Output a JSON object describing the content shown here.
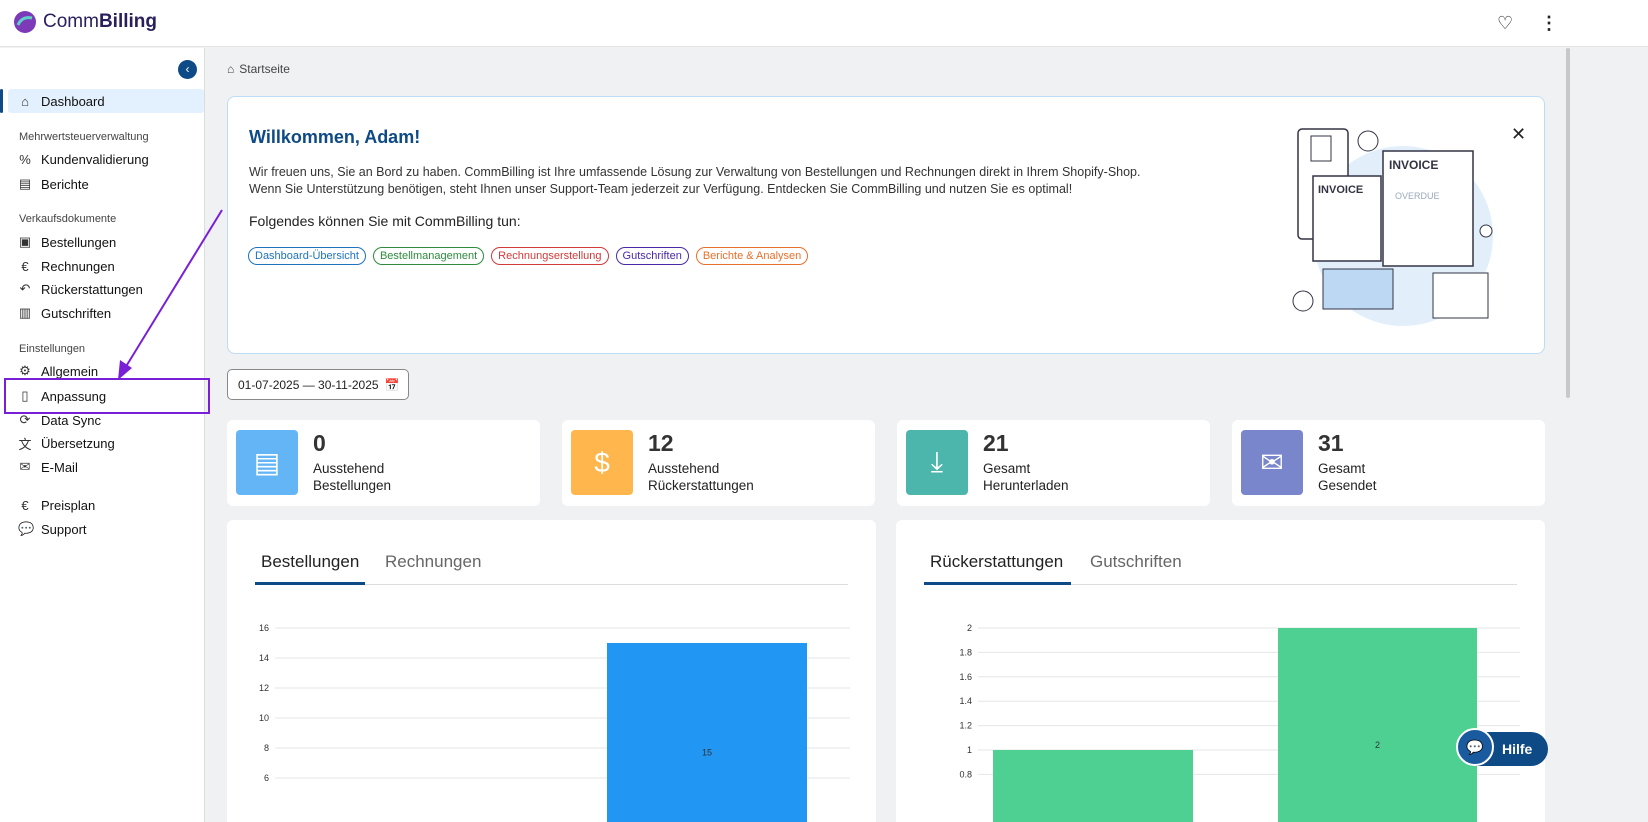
{
  "app": {
    "name_light": "Comm",
    "name_bold": "Billing"
  },
  "header": {
    "favorite_icon": "heart-icon",
    "menu_icon": "more-vertical-icon"
  },
  "sidebar": {
    "dashboard": "Dashboard",
    "sections": [
      "Mehrwertsteuerverwaltung",
      "Verkaufsdokumente",
      "Einstellungen"
    ],
    "items": [
      "Kundenvalidierung",
      "Berichte",
      "Bestellungen",
      "Rechnungen",
      "Rückerstattungen",
      "Gutschriften",
      "Allgemein",
      "Anpassung",
      "Data Sync",
      "Übersetzung",
      "E-Mail",
      "Preisplan",
      "Support"
    ]
  },
  "breadcrumb": "Startseite",
  "welcome": {
    "title": "Willkommen, Adam!",
    "line1": "Wir freuen uns, Sie an Bord zu haben. CommBilling ist Ihre umfassende Lösung zur Verwaltung von Bestellungen und Rechnungen direkt in Ihrem Shopify-Shop.",
    "line2": "Wenn Sie Unterstützung benötigen, steht Ihnen unser Support-Team jederzeit zur Verfügung. Entdecken Sie CommBilling und nutzen Sie es optimal!",
    "subtitle": "Folgendes können Sie mit CommBilling tun:",
    "chips": [
      {
        "label": "Dashboard-Übersicht",
        "color": "#1e73be"
      },
      {
        "label": "Bestellmanagement",
        "color": "#2e8b3e"
      },
      {
        "label": "Rechnungserstellung",
        "color": "#d33a3a"
      },
      {
        "label": "Gutschriften",
        "color": "#4a2aa8"
      },
      {
        "label": "Berichte & Analysen",
        "color": "#e8702a"
      }
    ],
    "illustration_text": [
      "INVOICE",
      "INVOICE",
      "OVERDUE"
    ]
  },
  "date_range": "01-07-2025 — 30-11-2025",
  "stats": [
    {
      "value": "0",
      "line1": "Ausstehend",
      "line2": "Bestellungen",
      "color": "#64b5f6",
      "icon": "inbox-icon"
    },
    {
      "value": "12",
      "line1": "Ausstehend",
      "line2": "Rückerstattungen",
      "color": "#ffb74d",
      "icon": "dollar-bill-icon"
    },
    {
      "value": "21",
      "line1": "Gesamt",
      "line2": "Herunterladen",
      "color": "#4db6ac",
      "icon": "download-icon"
    },
    {
      "value": "31",
      "line1": "Gesamt",
      "line2": "Gesendet",
      "color": "#7986cb",
      "icon": "mail-check-icon"
    }
  ],
  "charts_left": {
    "tabs": [
      "Bestellungen",
      "Rechnungen"
    ]
  },
  "charts_right": {
    "tabs": [
      "Rückerstattungen",
      "Gutschriften"
    ]
  },
  "chart_data": [
    {
      "type": "bar",
      "values": [
        0,
        15
      ],
      "ylim": [
        0,
        16
      ],
      "yticks": [
        16,
        14,
        12,
        10,
        8,
        6
      ],
      "color": "#2196f3",
      "data_labels": [
        "",
        "15"
      ],
      "grid": true
    },
    {
      "type": "bar",
      "values": [
        1,
        2
      ],
      "ylim": [
        0,
        2
      ],
      "yticks": [
        2,
        1.8,
        1.6,
        1.4,
        1.2,
        1,
        0.8
      ],
      "color": "#4fd093",
      "data_labels": [
        "",
        "2"
      ],
      "grid": true
    }
  ],
  "help": {
    "label": "Hilfe"
  }
}
